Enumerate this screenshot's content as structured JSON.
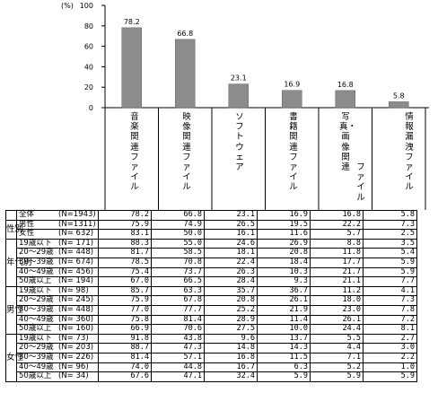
{
  "chart_data": {
    "type": "bar",
    "unit_label": "(%)",
    "ylim": [
      0,
      100
    ],
    "yticks": [
      "0",
      "20",
      "40",
      "60",
      "80",
      "100"
    ],
    "categories": [
      "音楽関連ファイル",
      "映像関連ファイル",
      "ソフトウェア",
      "書籍関連ファイル",
      "写真・画像関連ファイル",
      "情報漏洩ファイル"
    ],
    "values": [
      78.2,
      66.8,
      23.1,
      16.9,
      16.8,
      5.8
    ],
    "value_labels": [
      "78.2",
      "66.8",
      "23.1",
      "16.9",
      "16.8",
      "5.8"
    ],
    "bar_color": "#8c8c8c"
  },
  "cat_labels": {
    "c0": "音楽関連ファイル",
    "c1": "映像関連ファイル",
    "c2": "ソフトウェア",
    "c3": "書籍関連ファイル",
    "c4a": "写真・画像関連",
    "c4b": "ファイル",
    "c5": "情報漏洩ファイル"
  },
  "groups": {
    "sex": "性別",
    "age": "年代別",
    "male": "男性",
    "female": "女性"
  },
  "rows": [
    {
      "label": "全体",
      "n": "(N=1943)",
      "values": [
        "78.2",
        "66.8",
        "23.1",
        "16.9",
        "16.8",
        "5.8"
      ]
    },
    {
      "label": "男性",
      "n": "(N=1311)",
      "values": [
        "75.9",
        "74.9",
        "26.5",
        "19.5",
        "22.2",
        "7.3"
      ]
    },
    {
      "label": "女性",
      "n": "(N= 632)",
      "values": [
        "83.1",
        "50.0",
        "16.1",
        "11.6",
        "5.7",
        "2.5"
      ]
    },
    {
      "label": "19歳以下",
      "n": "(N= 171)",
      "values": [
        "88.3",
        "55.0",
        "24.6",
        "26.9",
        "8.8",
        "3.5"
      ]
    },
    {
      "label": "20～29歳",
      "n": "(N= 448)",
      "values": [
        "81.7",
        "58.5",
        "18.1",
        "20.8",
        "11.8",
        "5.4"
      ]
    },
    {
      "label": "30～39歳",
      "n": "(N= 674)",
      "values": [
        "78.5",
        "70.8",
        "22.4",
        "18.4",
        "17.7",
        "5.9"
      ]
    },
    {
      "label": "40～49歳",
      "n": "(N= 456)",
      "values": [
        "75.4",
        "73.7",
        "26.3",
        "10.3",
        "21.7",
        "5.9"
      ]
    },
    {
      "label": "50歳以上",
      "n": "(N= 194)",
      "values": [
        "67.0",
        "66.5",
        "28.4",
        "9.3",
        "21.1",
        "7.7"
      ]
    },
    {
      "label": "19歳以下",
      "n": "(N= 98)",
      "values": [
        "85.7",
        "63.3",
        "35.7",
        "36.7",
        "11.2",
        "4.1"
      ]
    },
    {
      "label": "20～29歳",
      "n": "(N= 245)",
      "values": [
        "75.9",
        "67.8",
        "20.8",
        "26.1",
        "18.0",
        "7.3"
      ]
    },
    {
      "label": "30～39歳",
      "n": "(N= 448)",
      "values": [
        "77.0",
        "77.7",
        "25.2",
        "21.9",
        "23.0",
        "7.8"
      ]
    },
    {
      "label": "40～49歳",
      "n": "(N= 360)",
      "values": [
        "75.8",
        "81.4",
        "28.9",
        "11.4",
        "26.1",
        "7.2"
      ]
    },
    {
      "label": "50歳以上",
      "n": "(N= 160)",
      "values": [
        "66.9",
        "70.6",
        "27.5",
        "10.0",
        "24.4",
        "8.1"
      ]
    },
    {
      "label": "19歳以下",
      "n": "(N= 73)",
      "values": [
        "91.8",
        "43.8",
        "9.6",
        "13.7",
        "5.5",
        "2.7"
      ]
    },
    {
      "label": "20～29歳",
      "n": "(N= 203)",
      "values": [
        "88.7",
        "47.3",
        "14.8",
        "14.3",
        "4.4",
        "3.0"
      ]
    },
    {
      "label": "30～39歳",
      "n": "(N= 226)",
      "values": [
        "81.4",
        "57.1",
        "16.8",
        "11.5",
        "7.1",
        "2.2"
      ]
    },
    {
      "label": "40～49歳",
      "n": "(N= 96)",
      "values": [
        "74.0",
        "44.8",
        "16.7",
        "6.3",
        "5.2",
        "1.0"
      ]
    },
    {
      "label": "50歳以上",
      "n": "(N= 34)",
      "values": [
        "67.6",
        "47.1",
        "32.4",
        "5.9",
        "5.9",
        "5.9"
      ]
    }
  ]
}
